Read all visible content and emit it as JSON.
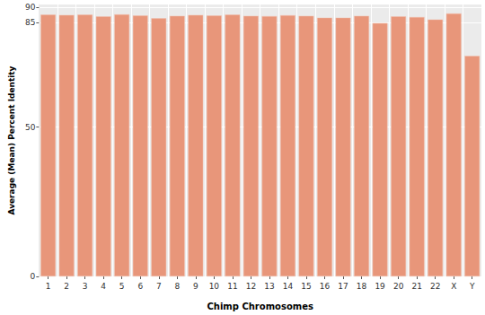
{
  "chart_data": {
    "type": "bar",
    "x_label": "Chimp Chromosomes",
    "y_label": "Average (Mean) Percent Identity",
    "categories": [
      "1",
      "2",
      "3",
      "4",
      "5",
      "6",
      "7",
      "8",
      "9",
      "10",
      "11",
      "12",
      "13",
      "14",
      "15",
      "16",
      "17",
      "18",
      "19",
      "20",
      "21",
      "22",
      "X",
      "Y"
    ],
    "values": [
      87.6,
      87.5,
      87.6,
      87.0,
      87.7,
      87.3,
      86.4,
      87.2,
      87.5,
      87.3,
      87.6,
      87.2,
      87.1,
      87.4,
      87.2,
      86.6,
      86.6,
      87.2,
      84.8,
      87.0,
      86.8,
      86.0,
      88.0,
      73.8
    ],
    "color": "#e8967a",
    "ylim": [
      0,
      91
    ],
    "yticks": [
      0,
      50,
      85,
      90
    ],
    "grid": true
  }
}
